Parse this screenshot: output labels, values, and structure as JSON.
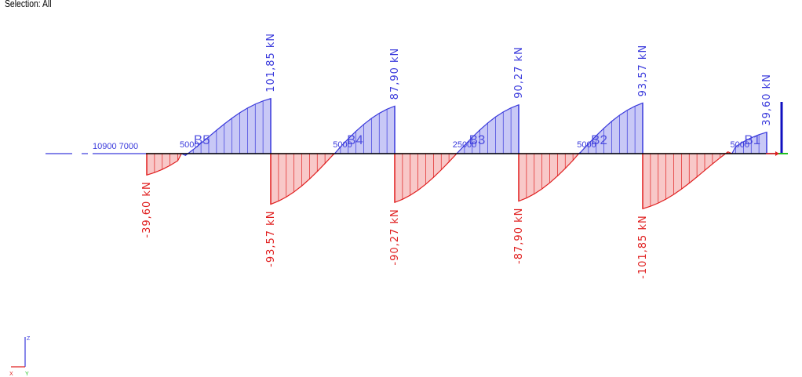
{
  "header": {
    "selection_label": "Selection: All"
  },
  "colors": {
    "positive": "#3a3adc",
    "negative": "#e02020",
    "positive_fill": "#c8c8f6",
    "negative_fill": "#f8c8c8",
    "beam": "#000000",
    "axis_z": "#3a3adc",
    "axis_y": "#20c020",
    "axis_x": "#e02020"
  },
  "left_labels": {
    "dims": "10900 7000"
  },
  "spans": [
    {
      "name": "B5",
      "dim": "5000",
      "start_value": "-39,60 kN",
      "end_value": "101,85 kN"
    },
    {
      "name": "B4",
      "dim": "5000",
      "start_value": "-93,57 kN",
      "end_value": "87,90 kN"
    },
    {
      "name": "B3",
      "dim": "25000",
      "start_value": "-90,27 kN",
      "end_value": "90,27 kN"
    },
    {
      "name": "B2",
      "dim": "5000",
      "start_value": "-87,90 kN",
      "end_value": "93,57 kN"
    },
    {
      "name": "B1",
      "dim": "5000",
      "start_value": "-101,85 kN",
      "end_value": "39,60 kN"
    }
  ],
  "axis_triad": {
    "z": "Z",
    "x": "X",
    "y": "Y"
  }
}
